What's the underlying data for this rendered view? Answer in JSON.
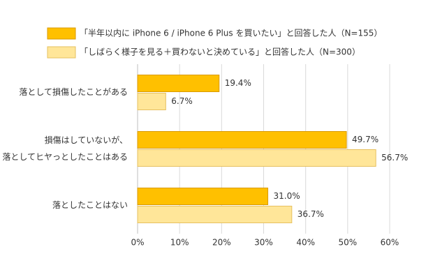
{
  "chart_data": {
    "type": "hbar",
    "categories": [
      "落として損傷したことがある",
      [
        "損傷はしていないが、",
        "落としてヒヤっとしたことはある"
      ],
      "落としたことはない"
    ],
    "series": [
      {
        "name": "「半年以内に iPhone 6 / iPhone 6 Plus を買いたい」と回答した人（N=155）",
        "color": "#ffc000",
        "values": [
          19.4,
          49.7,
          31.0
        ],
        "value_labels": [
          "19.4%",
          "49.7%",
          "31.0%"
        ]
      },
      {
        "name": "「しばらく様子を見る＋買わないと決めている」と回答した人（N=300）",
        "color": "#ffe699",
        "values": [
          6.7,
          56.7,
          36.7
        ],
        "value_labels": [
          "6.7%",
          "56.7%",
          "36.7%"
        ]
      }
    ],
    "xlim": [
      0,
      60
    ],
    "xticks": [
      {
        "value": 0,
        "label": "0%"
      },
      {
        "value": 10,
        "label": "10%"
      },
      {
        "value": 20,
        "label": "20%"
      },
      {
        "value": 30,
        "label": "30%"
      },
      {
        "value": 40,
        "label": "40%"
      },
      {
        "value": 50,
        "label": "50%"
      },
      {
        "value": 60,
        "label": "60%"
      }
    ],
    "grid": true
  }
}
